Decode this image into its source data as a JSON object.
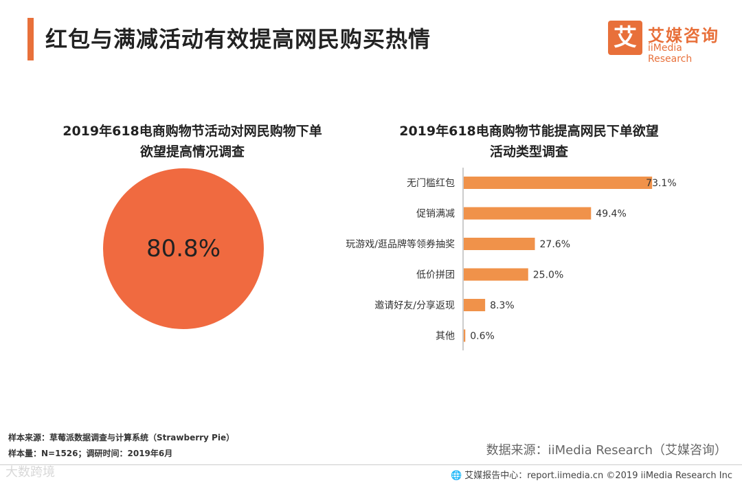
{
  "header": {
    "title": "红包与满减活动有效提高网民购买热情"
  },
  "logo": {
    "glyph": "艾",
    "name_cn": "艾媒咨询",
    "name_en": "iiMedia Research"
  },
  "pie": {
    "title_line1": "2019年618电商购物节活动对网民购物下单",
    "title_line2": "欲望提高情况调查",
    "value_label": "80.8%"
  },
  "bar_chart": {
    "title_line1": "2019年618电商购物节能提高网民下单欲望",
    "title_line2": "活动类型调查"
  },
  "chart_data": [
    {
      "type": "pie",
      "title": "2019年618电商购物节活动对网民购物下单欲望提高情况调查",
      "values": [
        80.8
      ],
      "labels": [
        "80.8%"
      ],
      "colors": [
        "#f06a40"
      ]
    },
    {
      "type": "bar",
      "orientation": "horizontal",
      "title": "2019年618电商购物节能提高网民下单欲望活动类型调查",
      "categories": [
        "无门槛红包",
        "促销满减",
        "玩游戏/逛品牌等领券抽奖",
        "低价拼团",
        "邀请好友/分享返现",
        "其他"
      ],
      "values": [
        73.1,
        49.4,
        27.6,
        25.0,
        8.3,
        0.6
      ],
      "value_labels": [
        "73.1%",
        "49.4%",
        "27.6%",
        "25.0%",
        "8.3%",
        "0.6%"
      ],
      "xlim": [
        0,
        100
      ],
      "bar_color": "#f0924a"
    }
  ],
  "footnotes": {
    "sample_source": "样本来源：草莓派数据调查与计算系统（Strawberry Pie）",
    "sample_size": "样本量：N=1526；调研时间：2019年6月"
  },
  "source": "数据来源：iiMedia Research（艾媒咨询）",
  "footer": {
    "icon": "globe-icon",
    "text": "艾媒报告中心：report.iimedia.cn ©2019 iiMedia Research Inc"
  },
  "watermark": "大数跨境"
}
